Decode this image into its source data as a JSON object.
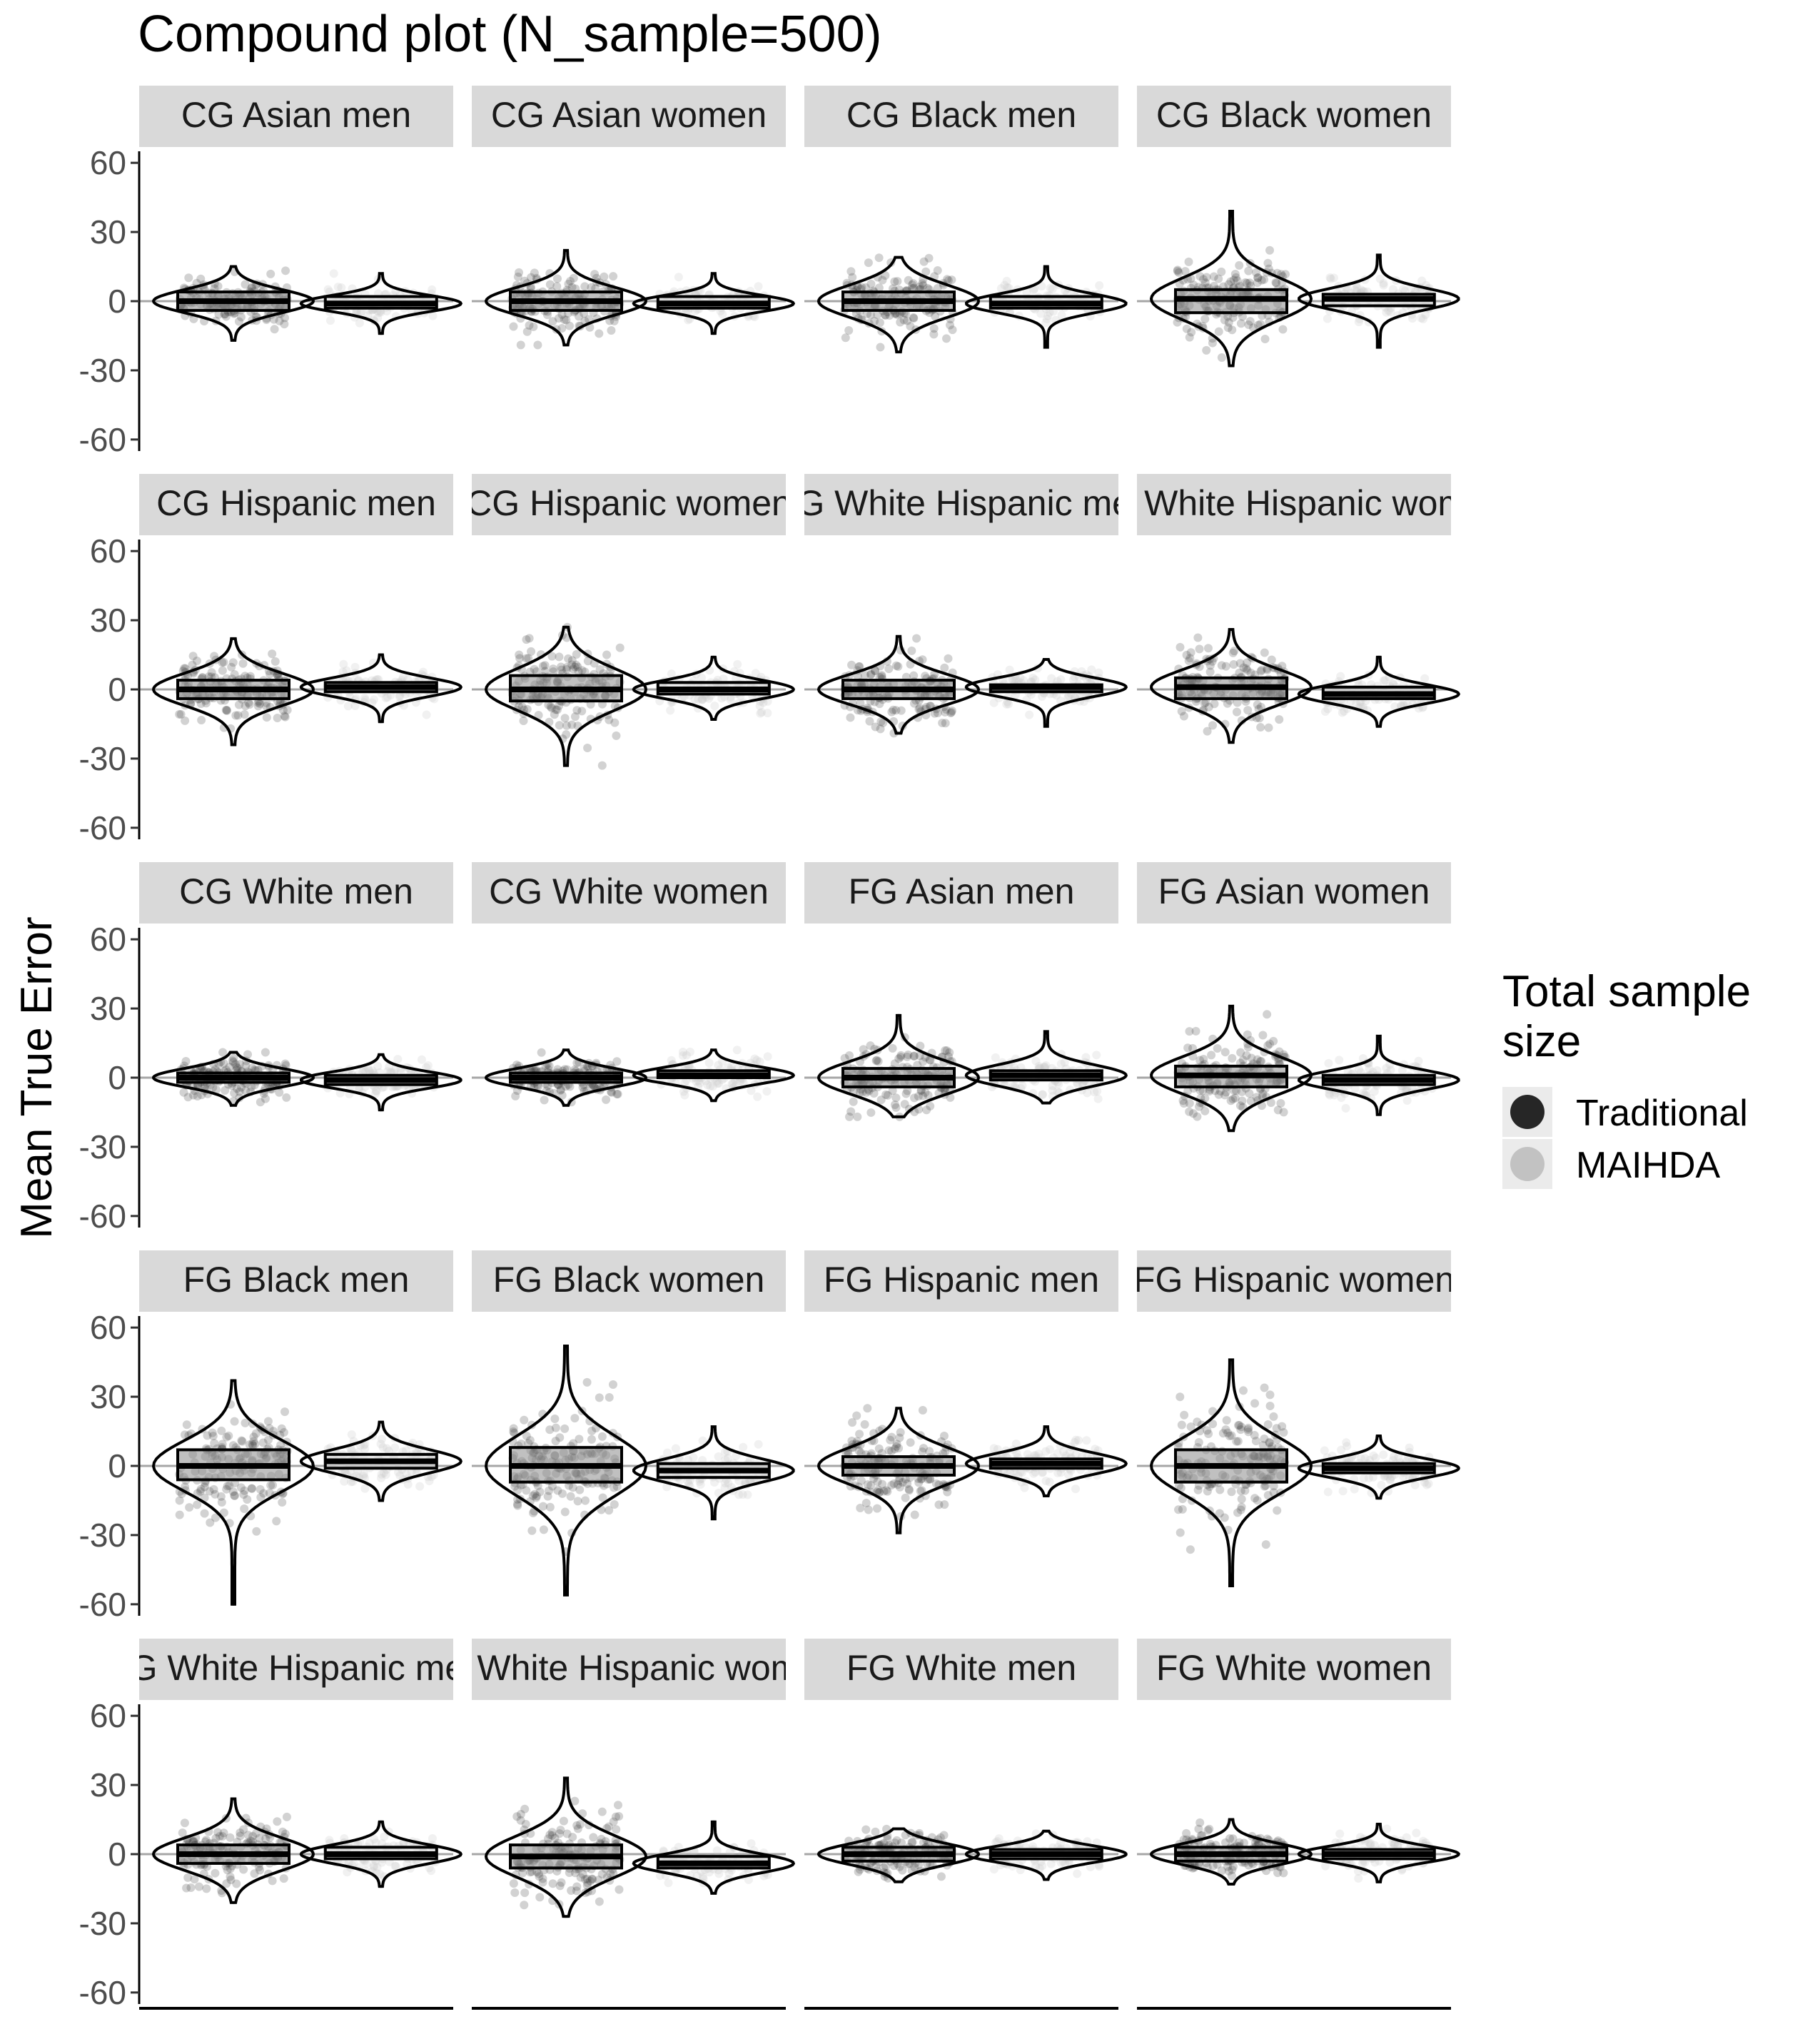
{
  "chart_data": {
    "type": "violin-boxplot-jitter",
    "title": "Compound plot (N_sample=500)",
    "ylabel": "Mean True Error",
    "xlabel": "",
    "ylim": [
      -65,
      65
    ],
    "yticks": [
      60,
      30,
      0,
      -30,
      -60
    ],
    "hline": 0,
    "grid": false,
    "legend": {
      "title_lines": [
        "Total sample",
        "size"
      ],
      "placement": "right",
      "entries": [
        {
          "name": "Traditional",
          "color": "#262626"
        },
        {
          "name": "MAIHDA",
          "color": "#c2c2c2"
        }
      ]
    },
    "panels": [
      {
        "label": "CG Asian men",
        "series": [
          {
            "name": "Traditional",
            "median": 0,
            "q1": -4,
            "q3": 4,
            "min": -17,
            "max": 15,
            "jitter_sd": 5
          },
          {
            "name": "MAIHDA",
            "median": -1,
            "q1": -3,
            "q3": 2,
            "min": -14,
            "max": 12,
            "jitter_sd": 3.5
          }
        ]
      },
      {
        "label": "CG Asian women",
        "series": [
          {
            "name": "Traditional",
            "median": 0,
            "q1": -4,
            "q3": 4,
            "min": -19,
            "max": 22,
            "jitter_sd": 6
          },
          {
            "name": "MAIHDA",
            "median": -1,
            "q1": -3,
            "q3": 2,
            "min": -14,
            "max": 12,
            "jitter_sd": 3.5
          }
        ]
      },
      {
        "label": "CG Black men",
        "series": [
          {
            "name": "Traditional",
            "median": 0,
            "q1": -4,
            "q3": 4,
            "min": -22,
            "max": 19,
            "jitter_sd": 7
          },
          {
            "name": "MAIHDA",
            "median": -1,
            "q1": -3,
            "q3": 2,
            "min": -20,
            "max": 15,
            "jitter_sd": 4
          }
        ]
      },
      {
        "label": "CG Black women",
        "series": [
          {
            "name": "Traditional",
            "median": 1,
            "q1": -5,
            "q3": 5,
            "min": -28,
            "max": 39,
            "jitter_sd": 9
          },
          {
            "name": "MAIHDA",
            "median": 1,
            "q1": -2,
            "q3": 3,
            "min": -20,
            "max": 20,
            "jitter_sd": 4.5
          }
        ]
      },
      {
        "label": "CG Hispanic men",
        "series": [
          {
            "name": "Traditional",
            "median": 0,
            "q1": -4,
            "q3": 4,
            "min": -24,
            "max": 22,
            "jitter_sd": 7
          },
          {
            "name": "MAIHDA",
            "median": 1,
            "q1": -1,
            "q3": 3,
            "min": -14,
            "max": 15,
            "jitter_sd": 4
          }
        ]
      },
      {
        "label": "CG Hispanic women",
        "series": [
          {
            "name": "Traditional",
            "median": 0,
            "q1": -5,
            "q3": 6,
            "min": -33,
            "max": 27,
            "jitter_sd": 9
          },
          {
            "name": "MAIHDA",
            "median": 0,
            "q1": -2,
            "q3": 3,
            "min": -13,
            "max": 14,
            "jitter_sd": 4
          }
        ]
      },
      {
        "label": "CG White Hispanic men",
        "series": [
          {
            "name": "Traditional",
            "median": 0,
            "q1": -4,
            "q3": 4,
            "min": -19,
            "max": 23,
            "jitter_sd": 6.5
          },
          {
            "name": "MAIHDA",
            "median": 1,
            "q1": -1,
            "q3": 2,
            "min": -16,
            "max": 13,
            "jitter_sd": 4
          }
        ]
      },
      {
        "label": "CG White Hispanic women",
        "series": [
          {
            "name": "Traditional",
            "median": 1,
            "q1": -4,
            "q3": 5,
            "min": -23,
            "max": 26,
            "jitter_sd": 7.5
          },
          {
            "name": "MAIHDA",
            "median": -2,
            "q1": -4,
            "q3": 1,
            "min": -16,
            "max": 14,
            "jitter_sd": 4
          }
        ]
      },
      {
        "label": "CG White men",
        "series": [
          {
            "name": "Traditional",
            "median": 0,
            "q1": -2,
            "q3": 2,
            "min": -12,
            "max": 11,
            "jitter_sd": 4
          },
          {
            "name": "MAIHDA",
            "median": -1,
            "q1": -3,
            "q3": 1,
            "min": -14,
            "max": 10,
            "jitter_sd": 3.5
          }
        ]
      },
      {
        "label": "CG White women",
        "series": [
          {
            "name": "Traditional",
            "median": 0,
            "q1": -2,
            "q3": 2,
            "min": -12,
            "max": 12,
            "jitter_sd": 4
          },
          {
            "name": "MAIHDA",
            "median": 1,
            "q1": 0,
            "q3": 3,
            "min": -10,
            "max": 12,
            "jitter_sd": 3.5
          }
        ]
      },
      {
        "label": "FG Asian men",
        "series": [
          {
            "name": "Traditional",
            "median": 0,
            "q1": -4,
            "q3": 4,
            "min": -17,
            "max": 27,
            "jitter_sd": 7
          },
          {
            "name": "MAIHDA",
            "median": 1,
            "q1": -1,
            "q3": 3,
            "min": -11,
            "max": 20,
            "jitter_sd": 4.5
          }
        ]
      },
      {
        "label": "FG Asian women",
        "series": [
          {
            "name": "Traditional",
            "median": 1,
            "q1": -4,
            "q3": 5,
            "min": -23,
            "max": 31,
            "jitter_sd": 8
          },
          {
            "name": "MAIHDA",
            "median": -1,
            "q1": -3,
            "q3": 1,
            "min": -16,
            "max": 18,
            "jitter_sd": 4
          }
        ]
      },
      {
        "label": "FG Black men",
        "series": [
          {
            "name": "Traditional",
            "median": 0,
            "q1": -6,
            "q3": 7,
            "min": -60,
            "max": 37,
            "jitter_sd": 11
          },
          {
            "name": "MAIHDA",
            "median": 2,
            "q1": -1,
            "q3": 5,
            "min": -15,
            "max": 19,
            "jitter_sd": 5
          }
        ]
      },
      {
        "label": "FG Black women",
        "series": [
          {
            "name": "Traditional",
            "median": 0,
            "q1": -7,
            "q3": 8,
            "min": -56,
            "max": 52,
            "jitter_sd": 13
          },
          {
            "name": "MAIHDA",
            "median": -2,
            "q1": -5,
            "q3": 1,
            "min": -23,
            "max": 17,
            "jitter_sd": 5
          }
        ]
      },
      {
        "label": "FG Hispanic men",
        "series": [
          {
            "name": "Traditional",
            "median": 0,
            "q1": -4,
            "q3": 4,
            "min": -29,
            "max": 25,
            "jitter_sd": 8
          },
          {
            "name": "MAIHDA",
            "median": 1,
            "q1": -1,
            "q3": 3,
            "min": -13,
            "max": 17,
            "jitter_sd": 4.5
          }
        ]
      },
      {
        "label": "FG Hispanic women",
        "series": [
          {
            "name": "Traditional",
            "median": 0,
            "q1": -7,
            "q3": 7,
            "min": -52,
            "max": 46,
            "jitter_sd": 12
          },
          {
            "name": "MAIHDA",
            "median": -1,
            "q1": -3,
            "q3": 1,
            "min": -14,
            "max": 13,
            "jitter_sd": 4
          }
        ]
      },
      {
        "label": "FG White Hispanic men",
        "series": [
          {
            "name": "Traditional",
            "median": 0,
            "q1": -4,
            "q3": 4,
            "min": -21,
            "max": 24,
            "jitter_sd": 7
          },
          {
            "name": "MAIHDA",
            "median": 0,
            "q1": -2,
            "q3": 3,
            "min": -14,
            "max": 14,
            "jitter_sd": 4
          }
        ]
      },
      {
        "label": "FG White Hispanic women",
        "series": [
          {
            "name": "Traditional",
            "median": -1,
            "q1": -6,
            "q3": 4,
            "min": -27,
            "max": 33,
            "jitter_sd": 9
          },
          {
            "name": "MAIHDA",
            "median": -4,
            "q1": -6,
            "q3": -1,
            "min": -17,
            "max": 14,
            "jitter_sd": 4
          }
        ]
      },
      {
        "label": "FG White men",
        "series": [
          {
            "name": "Traditional",
            "median": 0,
            "q1": -3,
            "q3": 3,
            "min": -12,
            "max": 11,
            "jitter_sd": 4.5
          },
          {
            "name": "MAIHDA",
            "median": 0,
            "q1": -2,
            "q3": 2,
            "min": -11,
            "max": 10,
            "jitter_sd": 3.5
          }
        ]
      },
      {
        "label": "FG White women",
        "series": [
          {
            "name": "Traditional",
            "median": 0,
            "q1": -3,
            "q3": 3,
            "min": -13,
            "max": 15,
            "jitter_sd": 4.5
          },
          {
            "name": "MAIHDA",
            "median": 0,
            "q1": -2,
            "q3": 2,
            "min": -12,
            "max": 13,
            "jitter_sd": 3.5
          }
        ]
      }
    ]
  }
}
